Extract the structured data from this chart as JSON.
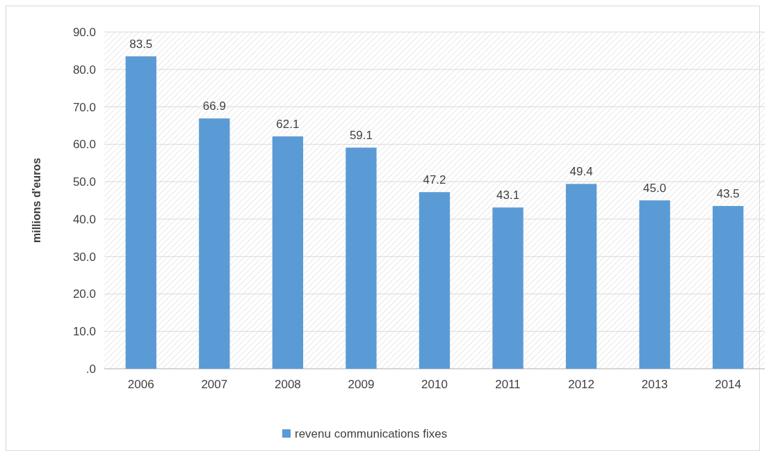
{
  "chart_data": {
    "type": "bar",
    "ylabel": "millions d'euros",
    "categories": [
      "2006",
      "2007",
      "2008",
      "2009",
      "2010",
      "2011",
      "2012",
      "2013",
      "2014"
    ],
    "series": [
      {
        "name": "revenu communications fixes",
        "color": "#5b9bd5",
        "values": [
          83.5,
          66.9,
          62.1,
          59.1,
          47.2,
          43.1,
          49.4,
          45.0,
          43.5
        ]
      }
    ],
    "value_labels": [
      "83.5",
      "66.9",
      "62.1",
      "59.1",
      "47.2",
      "43.1",
      "49.4",
      "45.0",
      "43.5"
    ],
    "ylim": [
      0,
      90
    ],
    "yticks": [
      {
        "value": 0,
        "label": ".0"
      },
      {
        "value": 10,
        "label": "10.0"
      },
      {
        "value": 20,
        "label": "20.0"
      },
      {
        "value": 30,
        "label": "30.0"
      },
      {
        "value": 40,
        "label": "40.0"
      },
      {
        "value": 50,
        "label": "50.0"
      },
      {
        "value": 60,
        "label": "60.0"
      },
      {
        "value": 70,
        "label": "70.0"
      },
      {
        "value": 80,
        "label": "80.0"
      },
      {
        "value": 90,
        "label": "90.0"
      }
    ],
    "grid": "y",
    "legend": "bottom"
  }
}
